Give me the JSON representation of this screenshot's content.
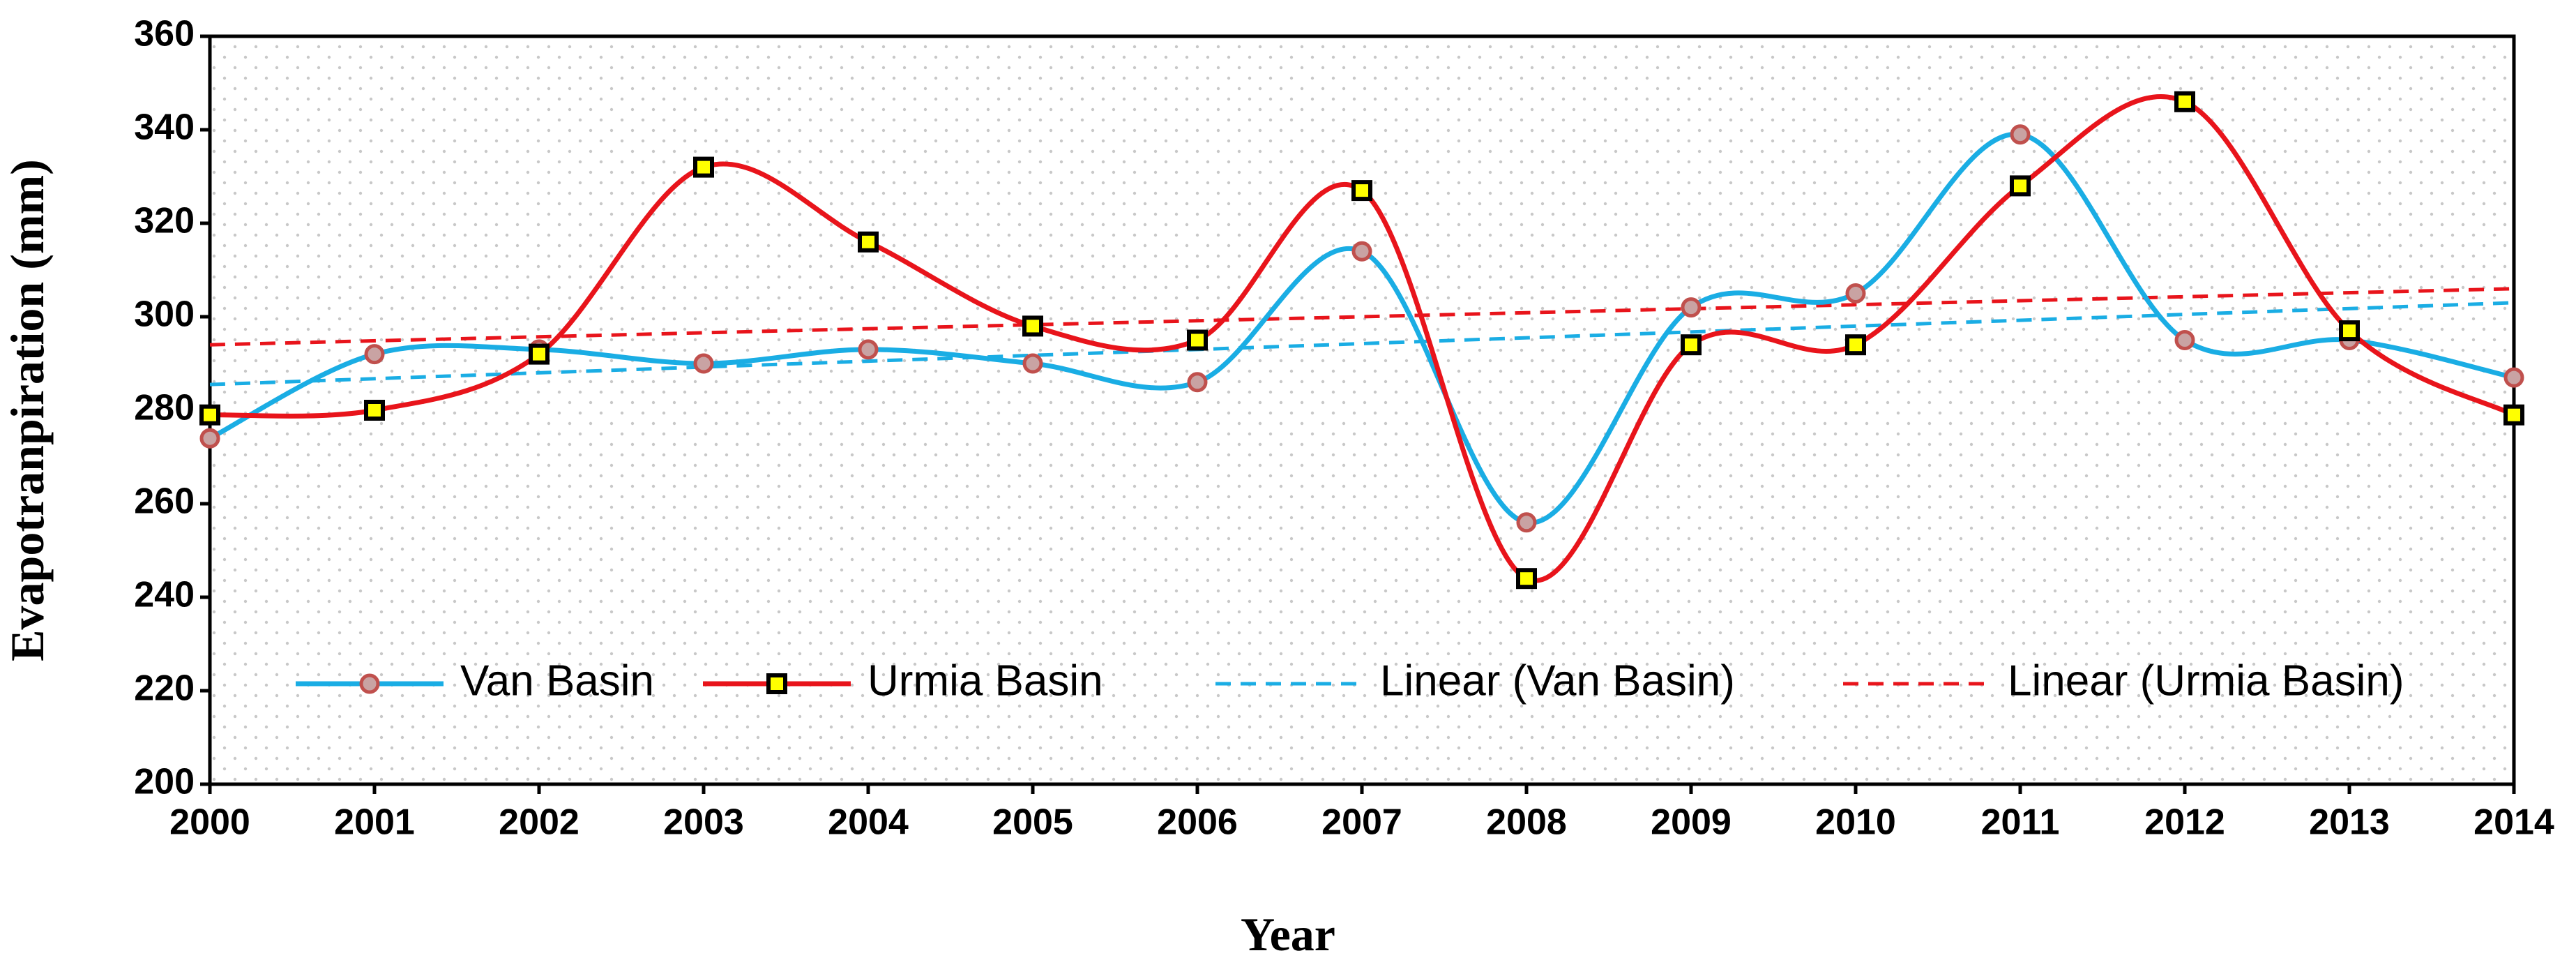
{
  "chart_data": {
    "type": "line",
    "x_label": "Year",
    "y_label": "Evapotranpiration (mm)",
    "categories": [
      "2000",
      "2001",
      "2002",
      "2003",
      "2004",
      "2005",
      "2006",
      "2007",
      "2008",
      "2009",
      "2010",
      "2011",
      "2012",
      "2013",
      "2014"
    ],
    "ylim": [
      200,
      360
    ],
    "yticks": [
      200,
      220,
      240,
      260,
      280,
      300,
      320,
      340,
      360
    ],
    "smooth": true,
    "legend": "inside-bottom",
    "series": [
      {
        "name": "Van Basin",
        "color": "#1aade4",
        "marker": "circle",
        "marker_fill": "#c9a3a3",
        "marker_stroke": "#c0504d",
        "dash": false,
        "values": [
          274,
          292,
          293,
          290,
          293,
          290,
          286,
          314,
          256,
          302,
          305,
          339,
          295,
          295,
          287
        ]
      },
      {
        "name": "Urmia Basin",
        "color": "#e8141b",
        "marker": "square",
        "marker_fill": "#ffff00",
        "marker_stroke": "#000000",
        "dash": false,
        "values": [
          279,
          280,
          292,
          332,
          316,
          298,
          295,
          327,
          244,
          294,
          294,
          328,
          346,
          297,
          279
        ]
      },
      {
        "name": "Linear (Van Basin)",
        "color": "#1aade4",
        "marker": "none",
        "dash": true,
        "values": [
          285.5,
          286.8,
          288,
          289.3,
          290.5,
          291.8,
          293,
          294.3,
          295.5,
          296.8,
          298,
          299.3,
          300.5,
          301.8,
          303
        ]
      },
      {
        "name": "Linear (Urmia Basin)",
        "color": "#e8141b",
        "marker": "none",
        "dash": true,
        "values": [
          294,
          294.9,
          295.7,
          296.6,
          297.4,
          298.3,
          299.1,
          300,
          300.9,
          301.7,
          302.6,
          303.4,
          304.3,
          305.1,
          306
        ]
      }
    ]
  }
}
